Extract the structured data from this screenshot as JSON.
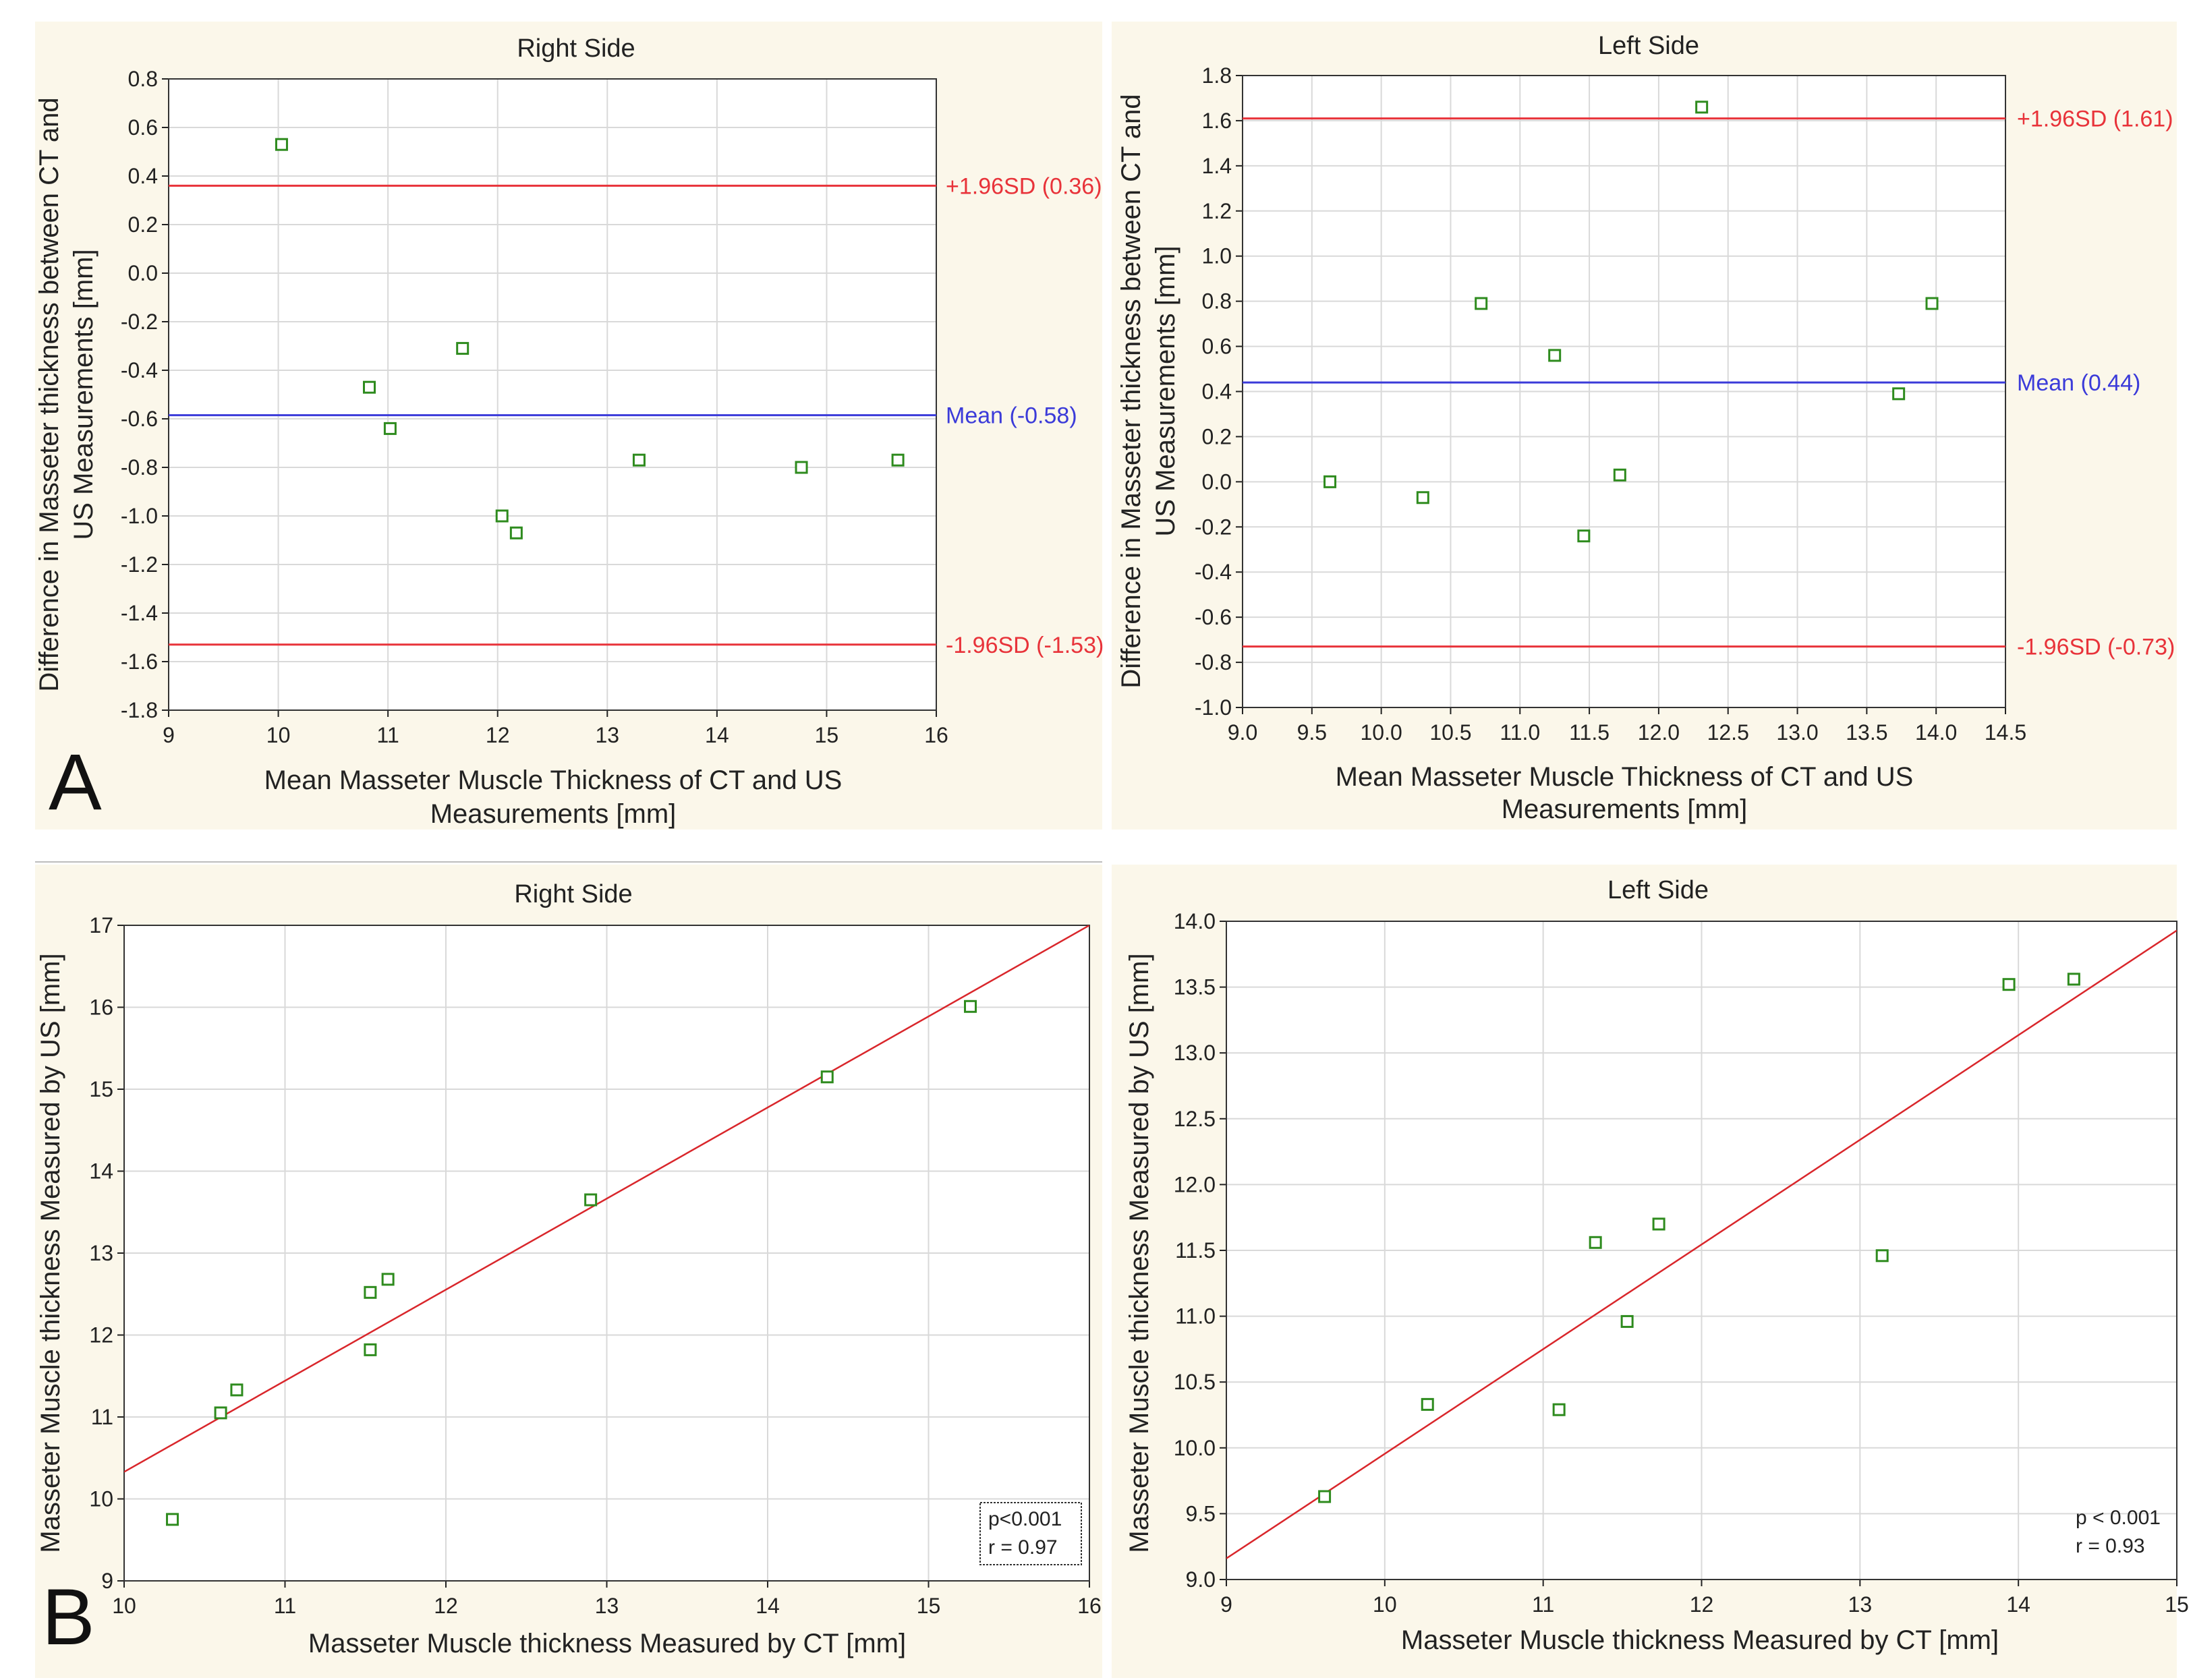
{
  "panel_labels": [
    "A",
    "B"
  ],
  "colors": {
    "panel_background": "#fbf7ea",
    "plot_background": "#ffffff",
    "grid": "#d9d9d9",
    "marker": "#2e8b1e",
    "limit_line": "#e8333a",
    "mean_line": "#3b3bd9",
    "regression_line": "#d9262b"
  },
  "chart_data": [
    {
      "id": "A-right",
      "type": "scatter",
      "title": "Right Side",
      "xlabel": [
        "Mean Masseter Muscle Thickness of CT and US",
        "Measurements [mm]"
      ],
      "ylabel": [
        "Difference in Masseter thickness between CT and",
        "US Measurements [mm]"
      ],
      "xlim": [
        9,
        16
      ],
      "ylim": [
        -1.8,
        0.8
      ],
      "xticks": [
        "9",
        "10",
        "11",
        "12",
        "13",
        "14",
        "15",
        "16"
      ],
      "yticks": [
        "0.8",
        "0.6",
        "0.4",
        "0.2",
        "0.0",
        "-0.2",
        "-0.4",
        "-0.6",
        "-0.8",
        "-1.0",
        "-1.2",
        "-1.4",
        "-1.6",
        "-1.8"
      ],
      "points": [
        [
          10.03,
          0.53
        ],
        [
          10.83,
          -0.47
        ],
        [
          11.02,
          -0.64
        ],
        [
          11.68,
          -0.31
        ],
        [
          12.04,
          -1.0
        ],
        [
          12.17,
          -1.07
        ],
        [
          13.29,
          -0.77
        ],
        [
          14.77,
          -0.8
        ],
        [
          15.65,
          -0.77
        ]
      ],
      "hlines": [
        {
          "label": "+1.96SD (0.36)",
          "y": 0.36,
          "role": "limit"
        },
        {
          "label": "Mean (-0.58)",
          "y": -0.585,
          "role": "mean"
        },
        {
          "label": "-1.96SD (-1.53)",
          "y": -1.53,
          "role": "limit"
        }
      ],
      "grid": true
    },
    {
      "id": "A-left",
      "type": "scatter",
      "title": "Left Side",
      "xlabel": [
        "Mean Masseter Muscle Thickness of CT and US",
        "Measurements [mm]"
      ],
      "ylabel": [
        "Difference in Masseter thickness between CT and",
        "US Measurements [mm]"
      ],
      "xlim": [
        9.0,
        14.5
      ],
      "ylim": [
        -1.0,
        1.8
      ],
      "xticks": [
        "9.0",
        "9.5",
        "10.0",
        "10.5",
        "11.0",
        "11.5",
        "12.0",
        "12.5",
        "13.0",
        "13.5",
        "14.0",
        "14.5"
      ],
      "yticks": [
        "1.8",
        "1.6",
        "1.4",
        "1.2",
        "1.0",
        "0.8",
        "0.6",
        "0.4",
        "0.2",
        "0.0",
        "-0.2",
        "-0.4",
        "-0.6",
        "-0.8",
        "-1.0"
      ],
      "points": [
        [
          9.63,
          0.0
        ],
        [
          10.3,
          -0.07
        ],
        [
          10.72,
          0.79
        ],
        [
          11.25,
          0.56
        ],
        [
          11.46,
          -0.24
        ],
        [
          11.72,
          0.03
        ],
        [
          12.31,
          1.66
        ],
        [
          13.73,
          0.39
        ],
        [
          13.97,
          0.79
        ]
      ],
      "hlines": [
        {
          "label": "+1.96SD (1.61)",
          "y": 1.61,
          "role": "limit"
        },
        {
          "label": "Mean (0.44)",
          "y": 0.44,
          "role": "mean"
        },
        {
          "label": "-1.96SD (-0.73)",
          "y": -0.73,
          "role": "limit"
        }
      ],
      "grid": true
    },
    {
      "id": "B-right",
      "type": "scatter",
      "title": "Right Side",
      "xlabel": [
        "Masseter Muscle thickness Measured by CT [mm]"
      ],
      "ylabel": [
        "Masseter Muscle thickness Measured by US [mm]"
      ],
      "xlim": [
        10,
        16
      ],
      "ylim": [
        9,
        17
      ],
      "xticks": [
        "10",
        "11",
        "12",
        "13",
        "14",
        "15",
        "16"
      ],
      "yticks": [
        "17",
        "16",
        "15",
        "14",
        "13",
        "12",
        "11",
        "10",
        "9"
      ],
      "points": [
        [
          10.3,
          9.75
        ],
        [
          10.6,
          11.05
        ],
        [
          10.7,
          11.33
        ],
        [
          11.53,
          12.52
        ],
        [
          11.53,
          11.82
        ],
        [
          11.64,
          12.68
        ],
        [
          12.9,
          13.65
        ],
        [
          14.37,
          15.15
        ],
        [
          15.26,
          16.01
        ]
      ],
      "fit_line": [
        [
          10.0,
          10.33
        ],
        [
          16.0,
          17.0
        ]
      ],
      "legend": [
        "p<0.001",
        "r = 0.97"
      ],
      "legend_boxed": true,
      "legend_position": "bottom-right",
      "grid": true
    },
    {
      "id": "B-left",
      "type": "scatter",
      "title": "Left Side",
      "xlabel": [
        "Masseter Muscle thickness Measured by CT [mm]"
      ],
      "ylabel": [
        "Masseter Muscle thickness Measured by US [mm]"
      ],
      "xlim": [
        9,
        15
      ],
      "ylim": [
        9.0,
        14.0
      ],
      "xticks": [
        "9",
        "10",
        "11",
        "12",
        "13",
        "14",
        "15"
      ],
      "yticks": [
        "14.0",
        "13.5",
        "13.0",
        "12.5",
        "12.0",
        "11.5",
        "11.0",
        "10.5",
        "10.0",
        "9.5",
        "9.0"
      ],
      "points": [
        [
          9.62,
          9.63
        ],
        [
          10.27,
          10.33
        ],
        [
          11.1,
          10.29
        ],
        [
          11.33,
          11.56
        ],
        [
          11.53,
          10.96
        ],
        [
          11.73,
          11.7
        ],
        [
          13.14,
          11.46
        ],
        [
          13.94,
          13.52
        ],
        [
          14.35,
          13.56
        ]
      ],
      "fit_line": [
        [
          9.0,
          9.16
        ],
        [
          15.0,
          13.93
        ]
      ],
      "legend": [
        "p < 0.001",
        "r = 0.93"
      ],
      "legend_boxed": false,
      "legend_position": "bottom-right",
      "grid": true
    }
  ]
}
